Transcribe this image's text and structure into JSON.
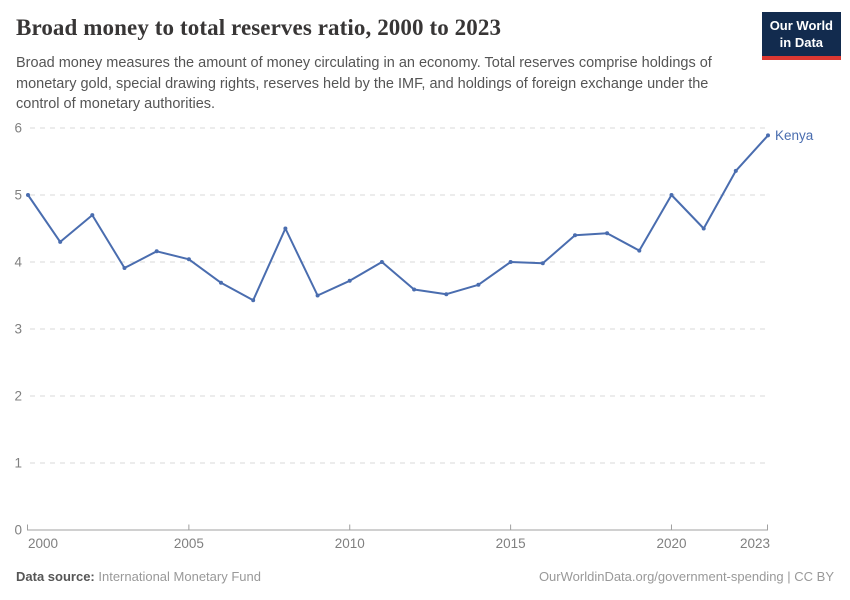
{
  "header": {
    "title": "Broad money to total reserves ratio, 2000 to 2023",
    "subtitle": "Broad money measures the amount of money circulating in an economy. Total reserves comprise holdings of monetary gold, special drawing rights, reserves held by the IMF, and holdings of foreign exchange under the control of monetary authorities.",
    "logo": {
      "line1": "Our World",
      "line2": "in Data",
      "bg_color": "#122b4e",
      "stripe_color": "#dc3832"
    }
  },
  "chart_data": {
    "type": "line",
    "title": "Broad money to total reserves ratio, 2000 to 2023",
    "x": [
      2000,
      2001,
      2002,
      2003,
      2004,
      2005,
      2006,
      2007,
      2008,
      2009,
      2010,
      2011,
      2012,
      2013,
      2014,
      2015,
      2016,
      2017,
      2018,
      2019,
      2020,
      2021,
      2022,
      2023
    ],
    "series": [
      {
        "name": "Kenya",
        "color": "#4a6daf",
        "values": [
          5.0,
          4.3,
          4.7,
          3.91,
          4.16,
          4.04,
          3.69,
          3.43,
          4.5,
          3.5,
          3.72,
          4.0,
          3.59,
          3.52,
          3.66,
          4.0,
          3.98,
          4.4,
          4.43,
          4.17,
          5.0,
          4.5,
          5.36,
          5.89
        ]
      }
    ],
    "xlabel": "",
    "ylabel": "",
    "ylim": [
      0,
      6
    ],
    "yticks": [
      0,
      1,
      2,
      3,
      4,
      5,
      6
    ],
    "xticks": [
      2000,
      2005,
      2010,
      2015,
      2020,
      2023
    ],
    "grid": "horizontal-dashed",
    "legend_position": "end-of-line",
    "colors": {
      "gridline": "#d9d9d9",
      "axis": "#a0a0a0",
      "tick_label": "#808080"
    }
  },
  "footer": {
    "datasource_label": "Data source:",
    "datasource_value": "International Monetary Fund",
    "attribution": "OurWorldinData.org/government-spending | CC BY"
  }
}
